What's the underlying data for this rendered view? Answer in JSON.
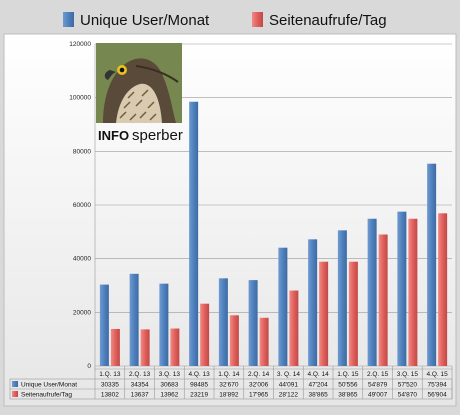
{
  "chart_data": {
    "type": "bar",
    "categories": [
      "1.Q. 13",
      "2.Q. 13",
      "3.Q. 13",
      "4.Q. 13",
      "1.Q.  14",
      "2.Q. 14",
      "3. Q. 14",
      "4.Q. 14",
      "1.Q. 15",
      "2.Q. 15",
      "3.Q. 15",
      "4.Q. 15"
    ],
    "series": [
      {
        "name": "Unique User/Monat",
        "values": [
          30335,
          34354,
          30683,
          98485,
          32670,
          32006,
          44091,
          47204,
          50556,
          54879,
          57520,
          75394
        ],
        "labels": [
          "30335",
          "34354",
          "30683",
          "98485",
          "32'670",
          "32'006",
          "44'091",
          "47'204",
          "50'556",
          "54'879",
          "57'520",
          "75'394"
        ],
        "table_label": "Unique User/Monat",
        "color": "#4f81bd"
      },
      {
        "name": "Seitenaufrufe/Tag",
        "values": [
          13802,
          13637,
          13962,
          23219,
          18892,
          17965,
          28122,
          38865,
          38865,
          49007,
          54870,
          56904
        ],
        "labels": [
          "13802",
          "13637",
          "13962",
          "23219",
          "18'892",
          "17'965",
          "28'122",
          "38'865",
          "38'865",
          "49'007",
          "54'870",
          "56'904"
        ],
        "table_label": "Seitenaufrufe/Tag",
        "color": "#d9534f"
      }
    ],
    "yticks": [
      0,
      20000,
      40000,
      60000,
      80000,
      100000,
      120000
    ],
    "ylim": [
      0,
      120000
    ],
    "grid": true,
    "legend": "top",
    "title": "",
    "xlabel": "",
    "ylabel": ""
  },
  "logo": {
    "text_bold": "INFO",
    "text_regular": "sperber",
    "icon": "sparrowhawk-photo"
  }
}
